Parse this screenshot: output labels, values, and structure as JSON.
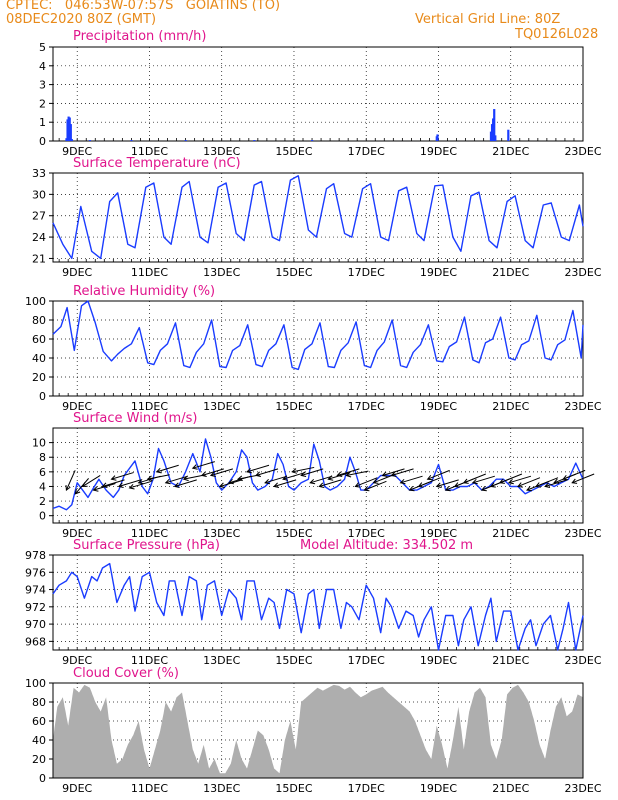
{
  "header": {
    "line1": "CPTEC:   046:53W-07:57S   GOIATINS (TO)",
    "line2": "08DEC2020 80Z (GMT)",
    "right1": "Vertical Grid Line: 80Z",
    "right2": "TQ0126L028"
  },
  "colors": {
    "header": "#e88a1a",
    "title": "#e0158c",
    "line": "#1a3cff",
    "bar": "#1a3cff",
    "cloud": "#a6a6a6",
    "wind_arrow": "#000000"
  },
  "chart_data": [
    {
      "type": "bar",
      "title": "Precipitation (mm/h)",
      "x_tick_labels": [
        "9DEC",
        "11DEC",
        "13DEC",
        "15DEC",
        "17DEC",
        "19DEC",
        "21DEC",
        "23DEC"
      ],
      "x_tick_days": [
        9,
        11,
        13,
        15,
        17,
        19,
        21,
        23
      ],
      "x_range_days": [
        8.33,
        23.0
      ],
      "ylim": [
        0,
        5
      ],
      "y_ticks": [
        0,
        1,
        2,
        3,
        4,
        5
      ],
      "x": [
        8.7,
        8.73,
        8.76,
        8.79,
        8.82,
        8.85,
        9.35,
        10.5,
        12.0,
        13.9,
        15.5,
        18.95,
        18.97,
        20.45,
        20.48,
        20.51,
        20.54,
        20.57,
        20.93
      ],
      "values": [
        0.15,
        1.15,
        1.3,
        1.25,
        0.9,
        0.1,
        0.05,
        0.05,
        0.05,
        0.05,
        0.05,
        0.25,
        0.35,
        0.5,
        0.9,
        1.2,
        1.7,
        0.3,
        0.6
      ]
    },
    {
      "type": "line",
      "title": "Surface Temperature (nC)",
      "x_tick_labels": [
        "9DEC",
        "11DEC",
        "13DEC",
        "15DEC",
        "17DEC",
        "19DEC",
        "21DEC",
        "23DEC"
      ],
      "x_tick_days": [
        9,
        11,
        13,
        15,
        17,
        19,
        21,
        23
      ],
      "x_range_days": [
        8.33,
        23.0
      ],
      "ylim": [
        20.5,
        33
      ],
      "y_ticks": [
        21,
        24,
        27,
        30,
        33
      ],
      "x": [
        8.33,
        8.6,
        8.85,
        9.1,
        9.4,
        9.65,
        9.9,
        10.12,
        10.4,
        10.6,
        10.9,
        11.12,
        11.4,
        11.6,
        11.9,
        12.1,
        12.4,
        12.62,
        12.9,
        13.12,
        13.4,
        13.62,
        13.9,
        14.1,
        14.4,
        14.6,
        14.9,
        15.12,
        15.4,
        15.62,
        15.9,
        16.1,
        16.4,
        16.6,
        16.9,
        17.12,
        17.4,
        17.62,
        17.9,
        18.12,
        18.4,
        18.6,
        18.9,
        19.12,
        19.4,
        19.62,
        19.9,
        20.12,
        20.4,
        20.62,
        20.9,
        21.12,
        21.4,
        21.62,
        21.9,
        22.12,
        22.4,
        22.62,
        22.9,
        23.0
      ],
      "values": [
        26.0,
        23.0,
        21.0,
        28.3,
        22.0,
        21.0,
        29.0,
        30.2,
        23.0,
        22.5,
        31.0,
        31.6,
        24.0,
        23.0,
        31.0,
        31.8,
        24.0,
        23.2,
        31.0,
        31.6,
        24.5,
        23.5,
        31.3,
        31.8,
        24.0,
        23.5,
        32.0,
        32.6,
        25.0,
        24.0,
        30.8,
        31.5,
        24.5,
        24.0,
        30.8,
        31.5,
        24.0,
        23.5,
        30.5,
        31.0,
        24.5,
        23.5,
        31.2,
        31.3,
        24.0,
        22.0,
        29.8,
        30.3,
        23.5,
        22.5,
        29.0,
        29.8,
        23.5,
        22.5,
        28.5,
        28.8,
        24.0,
        23.5,
        28.5,
        25.5
      ]
    },
    {
      "type": "line",
      "title": "Relative Humidity (%)",
      "x_tick_labels": [
        "9DEC",
        "11DEC",
        "13DEC",
        "15DEC",
        "17DEC",
        "19DEC",
        "21DEC",
        "23DEC"
      ],
      "x_tick_days": [
        9,
        11,
        13,
        15,
        17,
        19,
        21,
        23
      ],
      "x_range_days": [
        8.33,
        23.0
      ],
      "ylim": [
        0,
        100
      ],
      "y_ticks": [
        0,
        20,
        40,
        60,
        80,
        100
      ],
      "x": [
        8.33,
        8.55,
        8.72,
        8.92,
        9.12,
        9.3,
        9.5,
        9.72,
        9.95,
        10.12,
        10.3,
        10.5,
        10.72,
        10.95,
        11.12,
        11.3,
        11.5,
        11.72,
        11.95,
        12.12,
        12.3,
        12.5,
        12.72,
        12.95,
        13.12,
        13.3,
        13.5,
        13.72,
        13.95,
        14.12,
        14.3,
        14.5,
        14.72,
        14.95,
        15.12,
        15.3,
        15.5,
        15.72,
        15.95,
        16.12,
        16.3,
        16.5,
        16.72,
        16.95,
        17.12,
        17.3,
        17.5,
        17.72,
        17.95,
        18.12,
        18.3,
        18.5,
        18.72,
        18.95,
        19.12,
        19.3,
        19.5,
        19.72,
        19.95,
        20.12,
        20.3,
        20.5,
        20.72,
        20.95,
        21.12,
        21.3,
        21.5,
        21.72,
        21.95,
        22.12,
        22.3,
        22.5,
        22.72,
        22.95,
        23.0
      ],
      "values": [
        65,
        73,
        93,
        48,
        95,
        100,
        77,
        47,
        37,
        44,
        50,
        55,
        72,
        35,
        33,
        48,
        55,
        77,
        32,
        30,
        46,
        55,
        80,
        31,
        30,
        48,
        53,
        75,
        33,
        31,
        48,
        55,
        75,
        30,
        28,
        49,
        55,
        77,
        31,
        30,
        48,
        56,
        78,
        32,
        30,
        48,
        57,
        80,
        32,
        30,
        46,
        54,
        75,
        37,
        36,
        52,
        57,
        83,
        38,
        35,
        56,
        60,
        83,
        40,
        38,
        54,
        58,
        85,
        40,
        38,
        54,
        59,
        90,
        40,
        75
      ]
    },
    {
      "type": "line",
      "title": "Surface Wind (m/s)",
      "x_tick_labels": [
        "9DEC",
        "11DEC",
        "13DEC",
        "15DEC",
        "17DEC",
        "19DEC",
        "21DEC",
        "23DEC"
      ],
      "x_tick_days": [
        9,
        11,
        13,
        15,
        17,
        19,
        21,
        23
      ],
      "x_range_days": [
        8.33,
        23.0
      ],
      "ylim": [
        -1,
        12
      ],
      "y_ticks": [
        0,
        2,
        4,
        6,
        8,
        10
      ],
      "x": [
        8.33,
        8.5,
        8.7,
        8.85,
        9.0,
        9.15,
        9.3,
        9.45,
        9.6,
        9.8,
        10.0,
        10.15,
        10.3,
        10.45,
        10.6,
        10.8,
        10.95,
        11.1,
        11.25,
        11.4,
        11.6,
        11.8,
        12.0,
        12.2,
        12.4,
        12.55,
        12.7,
        12.85,
        13.0,
        13.2,
        13.4,
        13.55,
        13.7,
        13.85,
        14.0,
        14.2,
        14.4,
        14.55,
        14.7,
        14.85,
        15.0,
        15.2,
        15.4,
        15.55,
        15.7,
        15.85,
        16.0,
        16.2,
        16.4,
        16.55,
        16.7,
        16.85,
        17.0,
        17.2,
        17.4,
        17.6,
        17.8,
        18.0,
        18.2,
        18.4,
        18.6,
        18.8,
        19.0,
        19.2,
        19.4,
        19.6,
        19.8,
        20.0,
        20.2,
        20.4,
        20.6,
        20.8,
        21.0,
        21.2,
        21.4,
        21.6,
        21.8,
        22.0,
        22.2,
        22.4,
        22.6,
        22.8,
        23.0
      ],
      "values": [
        1.0,
        1.3,
        0.8,
        1.5,
        4.5,
        3.5,
        2.5,
        3.8,
        5.0,
        3.5,
        2.5,
        3.5,
        5.5,
        6.5,
        7.5,
        4.0,
        3.0,
        5.0,
        9.2,
        7.5,
        4.5,
        4.0,
        6.0,
        8.5,
        6.0,
        10.5,
        8.0,
        4.5,
        3.5,
        4.5,
        6.0,
        9.0,
        8.0,
        4.5,
        3.5,
        4.0,
        5.0,
        8.5,
        7.0,
        4.0,
        3.5,
        4.5,
        5.0,
        9.8,
        7.5,
        4.0,
        3.5,
        4.0,
        5.0,
        8.0,
        6.0,
        3.5,
        3.5,
        4.5,
        5.5,
        5.5,
        5.5,
        4.5,
        3.5,
        3.5,
        4.0,
        4.5,
        7.0,
        3.5,
        3.5,
        4.0,
        4.0,
        4.5,
        3.5,
        4.0,
        5.0,
        5.0,
        4.0,
        4.0,
        3.0,
        3.5,
        4.0,
        4.5,
        4.0,
        4.5,
        5.0,
        7.2,
        5.0
      ],
      "arrows_x": [
        8.7,
        8.95,
        9.15,
        9.45,
        9.7,
        9.95,
        10.15,
        10.45,
        10.7,
        10.95,
        11.2,
        11.45,
        11.7,
        11.95,
        12.2,
        12.45,
        12.7,
        12.95,
        13.2,
        13.45,
        13.7,
        13.95,
        14.2,
        14.45,
        14.7,
        14.95,
        15.2,
        15.45,
        15.7,
        15.95,
        16.2,
        16.45,
        16.7,
        16.95,
        17.2,
        17.45,
        17.7,
        17.95,
        18.2,
        18.45,
        18.7,
        18.95,
        19.2,
        19.45,
        19.7,
        19.95,
        20.2,
        20.45,
        20.7,
        20.95,
        21.2,
        21.45,
        21.7,
        21.95,
        22.2,
        22.45,
        22.7
      ],
      "arrows_speed": [
        3.5,
        3.0,
        4.0,
        3.5,
        4.0,
        5.0,
        4.0,
        3.8,
        4.5,
        5.0,
        6.0,
        4.5,
        4.0,
        5.0,
        6.5,
        5.5,
        5.5,
        4.0,
        4.5,
        5.0,
        6.0,
        5.5,
        4.5,
        4.0,
        5.0,
        6.0,
        5.5,
        4.5,
        4.0,
        5.0,
        5.5,
        5.5,
        4.0,
        3.5,
        4.5,
        5.5,
        5.5,
        4.5,
        3.5,
        4.0,
        5.0,
        4.0,
        3.5,
        4.0,
        4.5,
        4.5,
        3.5,
        4.0,
        4.5,
        4.5,
        4.0,
        3.5,
        4.0,
        4.0,
        4.5,
        5.0,
        4.5
      ],
      "arrows_dx": [
        0.4,
        0.6,
        0.8,
        1.0,
        1.0,
        1.0,
        1.0,
        1.0,
        1.0,
        1.0,
        1.0,
        1.0,
        1.0,
        1.0,
        1.0,
        1.0,
        1.0,
        1.0,
        1.0,
        1.0,
        1.0,
        1.0,
        1.0,
        1.0,
        1.0,
        1.0,
        1.0,
        1.0,
        1.0,
        1.0,
        1.0,
        1.0,
        1.0,
        1.0,
        1.0,
        1.0,
        1.0,
        1.0,
        1.0,
        1.0,
        1.0,
        1.0,
        1.0,
        1.0,
        1.0,
        1.0,
        1.0,
        1.0,
        1.0,
        1.0,
        1.0,
        1.0,
        1.0,
        1.0,
        1.0,
        1.0,
        1.0
      ],
      "arrows_dy": [
        0.9,
        0.7,
        0.5,
        0.3,
        0.3,
        0.3,
        0.3,
        0.3,
        0.3,
        0.2,
        0.3,
        0.3,
        0.3,
        0.2,
        0.3,
        0.3,
        0.3,
        0.3,
        0.3,
        0.2,
        0.3,
        0.3,
        0.3,
        0.3,
        0.3,
        0.2,
        0.3,
        0.3,
        0.3,
        0.3,
        0.3,
        0.2,
        0.4,
        0.4,
        0.4,
        0.3,
        0.3,
        0.3,
        0.4,
        0.4,
        0.4,
        0.3,
        0.4,
        0.4,
        0.4,
        0.3,
        0.4,
        0.4,
        0.4,
        0.3,
        0.4,
        0.4,
        0.4,
        0.3,
        0.4,
        0.4,
        0.4
      ]
    },
    {
      "type": "line",
      "title": "Surface Pressure (hPa)",
      "annotation": "Model Altitude: 334.502 m",
      "x_tick_labels": [
        "9DEC",
        "11DEC",
        "13DEC",
        "15DEC",
        "17DEC",
        "19DEC",
        "21DEC",
        "23DEC"
      ],
      "x_tick_days": [
        9,
        11,
        13,
        15,
        17,
        19,
        21,
        23
      ],
      "x_range_days": [
        8.33,
        23.0
      ],
      "ylim": [
        967,
        978
      ],
      "y_ticks": [
        968,
        970,
        972,
        974,
        976,
        978
      ],
      "x": [
        8.33,
        8.5,
        8.7,
        8.85,
        9.0,
        9.2,
        9.4,
        9.55,
        9.7,
        9.9,
        10.1,
        10.3,
        10.45,
        10.6,
        10.8,
        11.0,
        11.2,
        11.4,
        11.55,
        11.7,
        11.9,
        12.1,
        12.3,
        12.45,
        12.6,
        12.8,
        13.0,
        13.2,
        13.4,
        13.55,
        13.7,
        13.9,
        14.1,
        14.3,
        14.45,
        14.6,
        14.8,
        15.0,
        15.2,
        15.4,
        15.55,
        15.7,
        15.9,
        16.1,
        16.3,
        16.45,
        16.6,
        16.8,
        17.0,
        17.2,
        17.4,
        17.55,
        17.7,
        17.9,
        18.1,
        18.3,
        18.45,
        18.6,
        18.8,
        19.0,
        19.2,
        19.4,
        19.55,
        19.7,
        19.9,
        20.1,
        20.3,
        20.45,
        20.6,
        20.8,
        21.0,
        21.2,
        21.4,
        21.55,
        21.7,
        21.9,
        22.1,
        22.3,
        22.45,
        22.6,
        22.8,
        23.0
      ],
      "values": [
        973.5,
        974.5,
        975.0,
        976.0,
        975.5,
        973.0,
        975.5,
        975.0,
        976.5,
        977.0,
        972.5,
        974.5,
        975.5,
        971.5,
        975.5,
        976.0,
        972.5,
        971.0,
        975.0,
        975.0,
        971.0,
        975.5,
        975.0,
        970.5,
        974.5,
        975.0,
        971.0,
        974.0,
        973.0,
        970.5,
        975.0,
        975.0,
        970.5,
        973.0,
        972.5,
        969.5,
        974.0,
        973.5,
        969.0,
        973.5,
        974.0,
        969.5,
        974.0,
        974.0,
        969.5,
        972.5,
        972.0,
        970.5,
        974.5,
        973.0,
        969.0,
        973.0,
        972.0,
        969.5,
        971.5,
        971.0,
        968.5,
        970.5,
        972.0,
        967.0,
        971.0,
        971.0,
        967.5,
        970.5,
        972.0,
        967.5,
        971.0,
        973.0,
        968.0,
        971.5,
        971.5,
        967.0,
        969.5,
        970.5,
        967.5,
        970.0,
        971.0,
        967.0,
        969.5,
        972.5,
        967.0,
        971.0
      ]
    },
    {
      "type": "area",
      "title": "Cloud Cover (%)",
      "x_tick_labels": [
        "9DEC",
        "11DEC",
        "13DEC",
        "15DEC",
        "17DEC",
        "19DEC",
        "21DEC",
        "23DEC"
      ],
      "x_tick_days": [
        9,
        11,
        13,
        15,
        17,
        19,
        21,
        23
      ],
      "x_range_days": [
        8.33,
        23.0
      ],
      "ylim": [
        0,
        100
      ],
      "y_ticks": [
        0,
        20,
        40,
        60,
        80,
        100
      ],
      "x": [
        8.33,
        8.45,
        8.6,
        8.75,
        8.9,
        9.05,
        9.2,
        9.35,
        9.5,
        9.65,
        9.8,
        9.95,
        10.1,
        10.25,
        10.4,
        10.55,
        10.7,
        10.85,
        11.0,
        11.15,
        11.3,
        11.45,
        11.6,
        11.75,
        11.9,
        12.05,
        12.2,
        12.35,
        12.5,
        12.65,
        12.8,
        12.95,
        13.1,
        13.25,
        13.4,
        13.55,
        13.7,
        13.85,
        14.0,
        14.15,
        14.3,
        14.45,
        14.6,
        14.75,
        14.9,
        15.05,
        15.2,
        15.35,
        15.5,
        15.65,
        15.8,
        15.95,
        16.1,
        16.25,
        16.4,
        16.55,
        16.7,
        16.85,
        17.0,
        17.15,
        17.3,
        17.45,
        17.6,
        17.75,
        17.9,
        18.05,
        18.2,
        18.35,
        18.5,
        18.65,
        18.8,
        18.95,
        19.1,
        19.25,
        19.4,
        19.55,
        19.7,
        19.85,
        20.0,
        20.15,
        20.3,
        20.45,
        20.6,
        20.75,
        20.9,
        21.05,
        21.2,
        21.35,
        21.5,
        21.65,
        21.8,
        21.95,
        22.1,
        22.25,
        22.4,
        22.55,
        22.7,
        22.85,
        23.0
      ],
      "values": [
        40,
        75,
        85,
        55,
        95,
        90,
        98,
        95,
        80,
        70,
        85,
        40,
        15,
        20,
        35,
        45,
        60,
        30,
        10,
        30,
        50,
        80,
        70,
        85,
        90,
        60,
        30,
        15,
        35,
        10,
        20,
        5,
        5,
        15,
        40,
        20,
        10,
        30,
        50,
        45,
        30,
        10,
        5,
        40,
        60,
        30,
        80,
        85,
        90,
        95,
        92,
        95,
        98,
        97,
        93,
        96,
        90,
        85,
        88,
        92,
        94,
        96,
        90,
        85,
        80,
        75,
        70,
        60,
        45,
        30,
        20,
        55,
        35,
        10,
        40,
        75,
        30,
        70,
        90,
        95,
        85,
        35,
        20,
        40,
        88,
        95,
        98,
        90,
        80,
        60,
        35,
        20,
        50,
        75,
        85,
        65,
        70,
        88,
        85
      ]
    }
  ]
}
